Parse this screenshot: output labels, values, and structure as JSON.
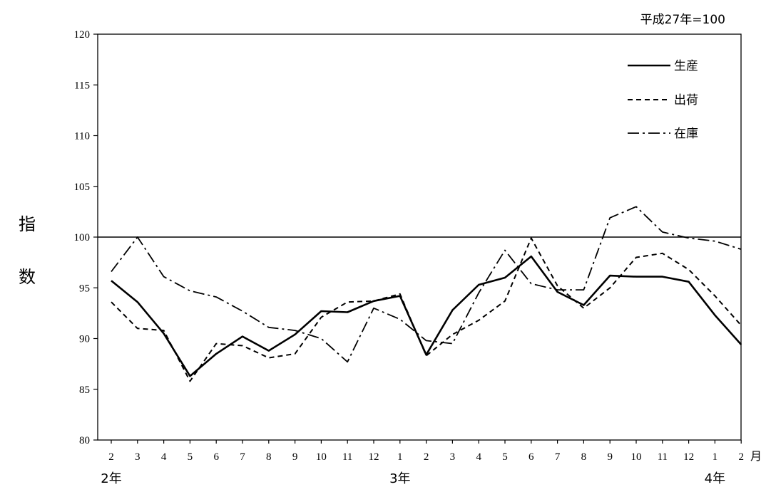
{
  "chart_data": {
    "type": "line",
    "base_note": "平成27年=100",
    "ylabel": "指数",
    "ylabel_chars": [
      "指",
      "数"
    ],
    "ylim": [
      80,
      120
    ],
    "yticks": [
      80,
      85,
      90,
      95,
      100,
      105,
      110,
      115,
      120
    ],
    "x_unit": "月",
    "categories": [
      "2",
      "3",
      "4",
      "5",
      "6",
      "7",
      "8",
      "9",
      "10",
      "11",
      "12",
      "1",
      "2",
      "3",
      "4",
      "5",
      "6",
      "7",
      "8",
      "9",
      "10",
      "11",
      "12",
      "1",
      "2"
    ],
    "year_labels": [
      {
        "label": "2年",
        "index": 0
      },
      {
        "label": "3年",
        "index": 11
      },
      {
        "label": "4年",
        "index": 23
      }
    ],
    "reference_line": 100,
    "series": [
      {
        "name": "生産",
        "style": "solid",
        "values": [
          95.7,
          93.6,
          90.5,
          86.3,
          88.5,
          90.2,
          88.8,
          90.4,
          92.7,
          92.6,
          93.7,
          94.2,
          88.4,
          92.8,
          95.3,
          96.0,
          98.1,
          94.6,
          93.3,
          96.2,
          96.1,
          96.1,
          95.6,
          92.3,
          89.4
        ]
      },
      {
        "name": "出荷",
        "style": "dashed",
        "values": [
          93.6,
          91.0,
          90.8,
          85.8,
          89.5,
          89.3,
          88.1,
          88.5,
          92.1,
          93.6,
          93.7,
          94.4,
          88.3,
          90.4,
          91.8,
          93.7,
          99.9,
          95.2,
          93.0,
          95.0,
          98.0,
          98.4,
          96.8,
          94.2,
          91.3
        ]
      },
      {
        "name": "在庫",
        "style": "dashdot",
        "values": [
          96.6,
          100.0,
          96.1,
          94.7,
          94.1,
          92.7,
          91.1,
          90.8,
          90.0,
          87.7,
          93.0,
          91.9,
          89.8,
          89.5,
          94.5,
          98.7,
          95.4,
          94.8,
          94.8,
          101.9,
          103.0,
          100.5,
          99.9,
          99.6,
          98.8
        ]
      }
    ],
    "legend_position": "top-right",
    "grid": false
  }
}
